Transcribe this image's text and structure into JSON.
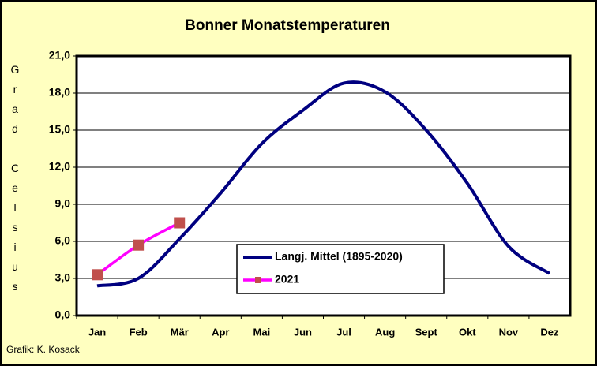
{
  "chart_data": {
    "type": "line",
    "title": "Bonner Monatstemperaturen",
    "y_label": "Grad Celsius",
    "annotation": "Grafik:  K. Kosack",
    "categories": [
      "Jan",
      "Feb",
      "Mär",
      "Apr",
      "Mai",
      "Jun",
      "Jul",
      "Aug",
      "Sept",
      "Okt",
      "Nov",
      "Dez"
    ],
    "series": [
      {
        "name": "Langj. Mittel (1895-2020)",
        "color": "#000080",
        "values": [
          2.4,
          3.0,
          6.2,
          9.9,
          13.9,
          16.6,
          18.8,
          18.1,
          15.0,
          10.7,
          5.6,
          3.4
        ]
      },
      {
        "name": "2021",
        "color": "#ff00ff",
        "marker_color": "#c0504d",
        "values": [
          3.3,
          5.7,
          7.5,
          null,
          null,
          null,
          null,
          null,
          null,
          null,
          null,
          null
        ]
      }
    ],
    "ylim": [
      0,
      21
    ],
    "yticks": [
      {
        "value": 0,
        "label": "0,0"
      },
      {
        "value": 3,
        "label": "3,0"
      },
      {
        "value": 6,
        "label": "6,0"
      },
      {
        "value": 9,
        "label": "9,0"
      },
      {
        "value": 12,
        "label": "12,0"
      },
      {
        "value": 15,
        "label": "15,0"
      },
      {
        "value": 18,
        "label": "18,0"
      },
      {
        "value": 21,
        "label": "21,0"
      }
    ],
    "grid": true
  }
}
